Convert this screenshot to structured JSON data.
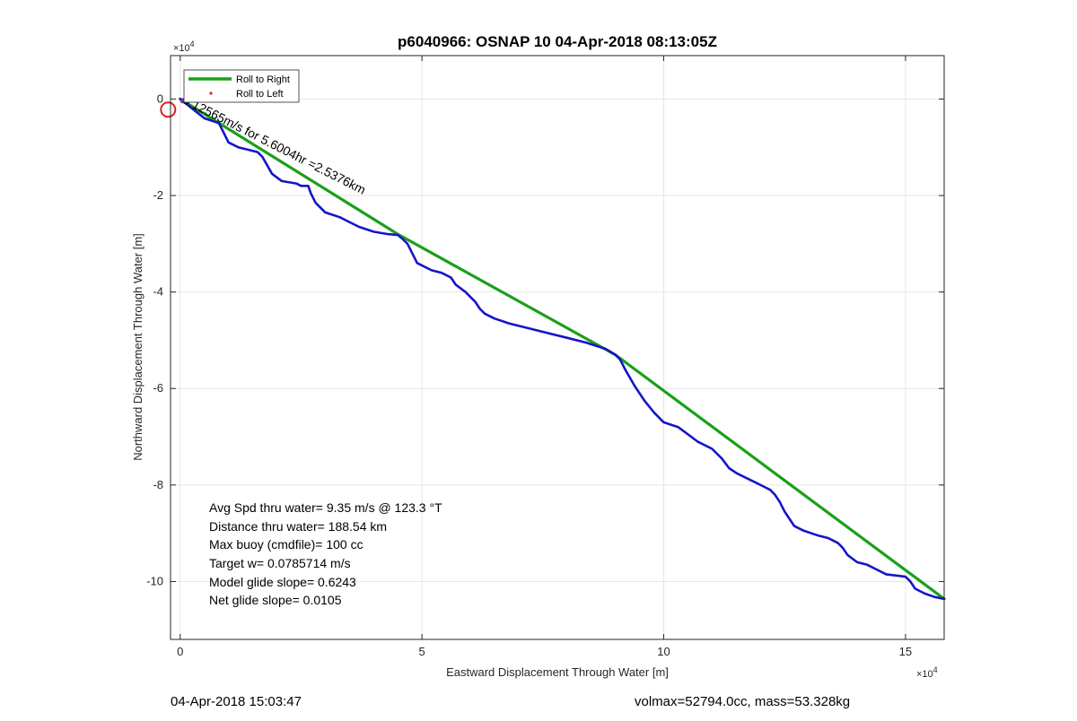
{
  "chart_data": {
    "type": "line",
    "title": "p6040966: OSNAP 10 04-Apr-2018 08:13:05Z",
    "xlabel": "Eastward Displacement Through Water [m]",
    "ylabel": "Northward Displacement Through Water [m]",
    "x_exponent_label": "×10",
    "y_exponent_label": "×10",
    "exponent_power": "4",
    "xlim": [
      -2000,
      158000
    ],
    "ylim": [
      -112000,
      9000
    ],
    "x_ticks": [
      0,
      50000,
      100000,
      150000
    ],
    "x_tick_labels": [
      "0",
      "5",
      "10",
      "15"
    ],
    "y_ticks": [
      0,
      -20000,
      -40000,
      -60000,
      -80000,
      -100000
    ],
    "y_tick_labels": [
      "0",
      "-2",
      "-4",
      "-6",
      "-8",
      "-10"
    ],
    "grid": true,
    "legend_position": "top-left",
    "legend": [
      {
        "label": "Roll to Right",
        "color": "#1aa01a",
        "marker": "line"
      },
      {
        "label": "Roll to Left",
        "color": "#e02020",
        "marker": "dot"
      }
    ],
    "series": [
      {
        "name": "Roll to Right",
        "color": "#1aa01a",
        "x": [
          0,
          45000,
          90000,
          158000
        ],
        "y": [
          0,
          -28000,
          -53000,
          -103600
        ]
      },
      {
        "color": "#1515c8",
        "x": [
          0,
          5000,
          8000,
          9000,
          10000,
          12000,
          14000,
          16000,
          17000,
          19000,
          21000,
          24000,
          25000,
          26500,
          27000,
          28000,
          30000,
          33000,
          35000,
          37000,
          40000,
          43000,
          45000,
          46000,
          47000,
          48000,
          49000,
          52000,
          54000,
          56000,
          57000,
          59000,
          61000,
          62000,
          63000,
          65000,
          68000,
          72000,
          76000,
          80000,
          84000,
          88000,
          90000,
          91000,
          92000,
          94000,
          96000,
          98000,
          100000,
          101500,
          103000,
          105000,
          107000,
          110000,
          112000,
          113500,
          115000,
          117000,
          119000,
          121000,
          122000,
          123000,
          124000,
          125000,
          126000,
          127000,
          128000,
          129000,
          132000,
          134000,
          135000,
          136000,
          137000,
          138000,
          140000,
          142000,
          144000,
          146000,
          150000,
          151000,
          152000,
          154000,
          156000,
          158000
        ],
        "y": [
          0,
          -4000,
          -5000,
          -7000,
          -9000,
          -10000,
          -10500,
          -11000,
          -12000,
          -15500,
          -17000,
          -17500,
          -18000,
          -18000,
          -19500,
          -21500,
          -23500,
          -24500,
          -25500,
          -26500,
          -27500,
          -28000,
          -28200,
          -29000,
          -30000,
          -32000,
          -34000,
          -35500,
          -36000,
          -37000,
          -38500,
          -40000,
          -42000,
          -43500,
          -44500,
          -45500,
          -46500,
          -47500,
          -48500,
          -49500,
          -50500,
          -51800,
          -53000,
          -54000,
          -56000,
          -59500,
          -62500,
          -65000,
          -67000,
          -67500,
          -68000,
          -69500,
          -71000,
          -72500,
          -74500,
          -76500,
          -77500,
          -78500,
          -79500,
          -80500,
          -81000,
          -82000,
          -83500,
          -85500,
          -87000,
          -88500,
          -89000,
          -89500,
          -90500,
          -91000,
          -91500,
          -92000,
          -93000,
          -94500,
          -96000,
          -96500,
          -97500,
          -98500,
          -99000,
          -100000,
          -101500,
          -102500,
          -103200,
          -103600
        ]
      }
    ],
    "annotations": [
      {
        "text": "0.12565m/s for 5.6004hr =2.5376km",
        "x": 0,
        "y": 0,
        "angle_deg": 27,
        "color": "#000000"
      }
    ],
    "start_marker": {
      "x": -2500,
      "y": -2200,
      "color": "#e02020"
    },
    "stats_text": [
      "Avg Spd thru water=  9.35 m/s @ 123.3 °T",
      "Distance thru water= 188.54 km",
      "Max buoy (cmdfile)= 100 cc",
      "Target w= 0.0785714 m/s",
      "Model glide slope= 0.6243",
      "Net glide slope= 0.0105"
    ]
  },
  "footer": {
    "left": "04-Apr-2018 15:03:47",
    "right": "volmax=52794.0cc, mass=53.328kg"
  }
}
